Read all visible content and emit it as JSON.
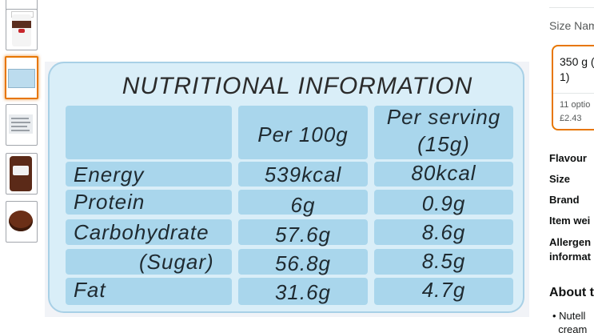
{
  "thumbnails": [
    {
      "name": "jar-front",
      "selected": false
    },
    {
      "name": "jar-label",
      "selected": false
    },
    {
      "name": "nutrition-panel",
      "selected": true
    },
    {
      "name": "ingredients-label",
      "selected": false
    },
    {
      "name": "jar-side",
      "selected": false
    },
    {
      "name": "spread-bowl",
      "selected": false
    }
  ],
  "nutrition": {
    "title": "NUTRITIONAL INFORMATION",
    "col_per100": "Per 100g",
    "col_serving_line1": "Per serving",
    "col_serving_line2": "(15g)",
    "rows": [
      {
        "label": "Energy",
        "per100": "539kcal",
        "serving": "80kcal"
      },
      {
        "label": "Protein",
        "per100": "6g",
        "serving": "0.9g"
      },
      {
        "label": "Carbohydrate",
        "per100": "57.6g",
        "serving": "8.6g"
      },
      {
        "label": "(Sugar)",
        "per100": "56.8g",
        "serving": "8.5g"
      },
      {
        "label": "Fat",
        "per100": "31.6g",
        "serving": "4.7g"
      }
    ]
  },
  "right_panel": {
    "size_name_label": "Size Nam",
    "selected_option_title": "350 g (\n1)",
    "selected_option_sub": "11 optio\n£2.43",
    "attributes": [
      "Flavour",
      "Size",
      "Brand",
      "Item wei",
      "Allergen",
      "informat"
    ],
    "about_heading": "About t",
    "bullet_text": "• Nutell\n  cream"
  },
  "colors": {
    "panel_bg": "#d9eef8",
    "cell_bg": "#a9d6ec",
    "selection_accent": "#e77600"
  }
}
